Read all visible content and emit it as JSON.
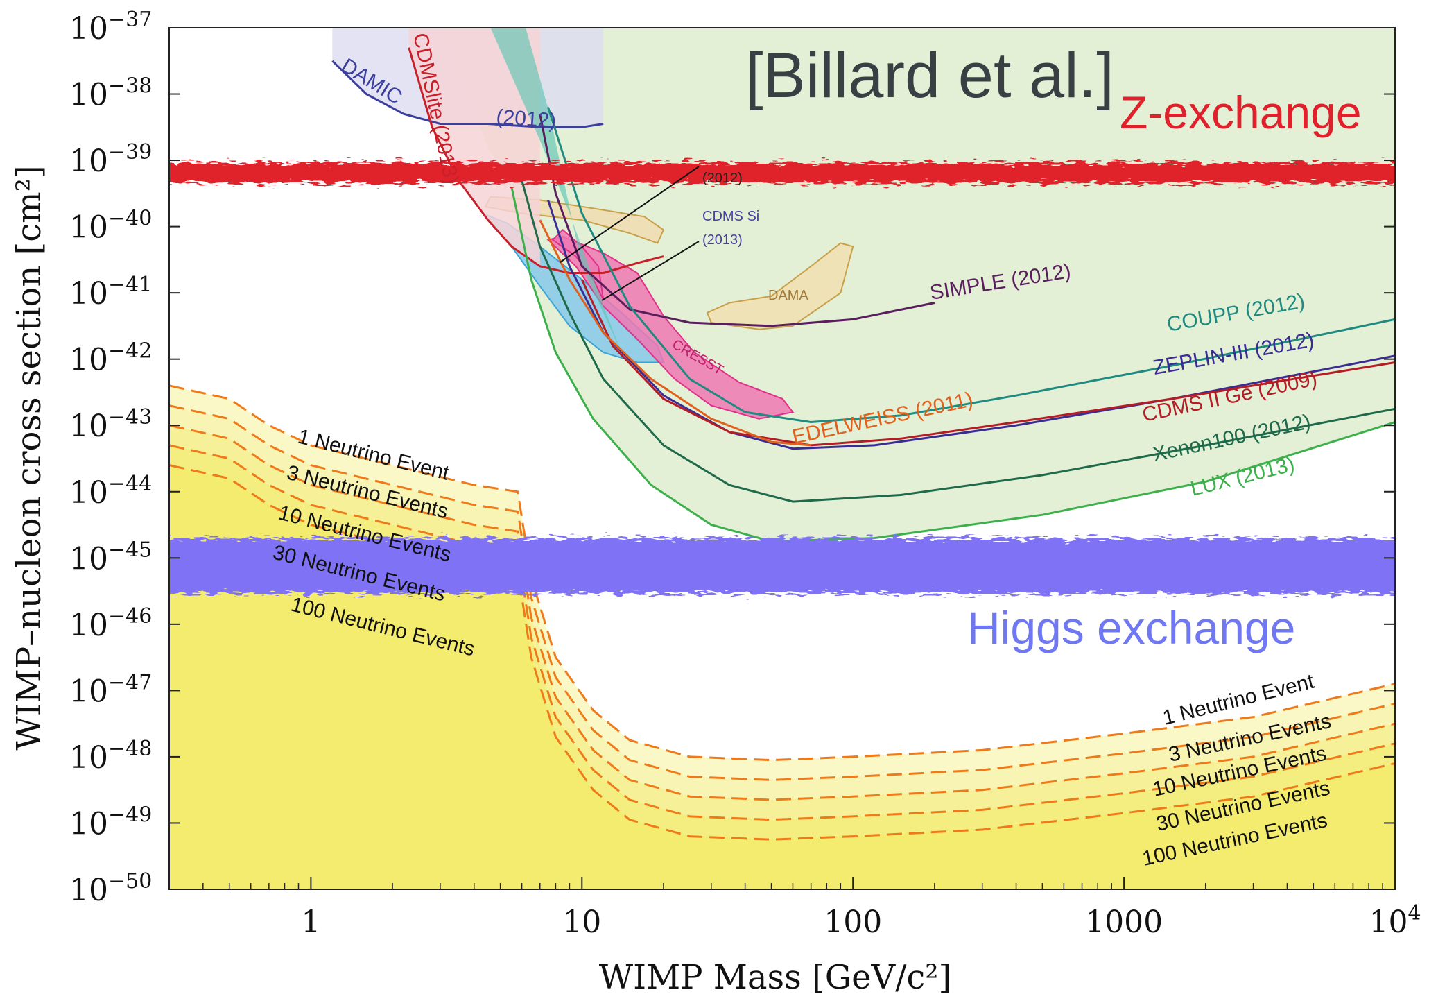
{
  "chart_data": {
    "type": "line",
    "xlabel": "WIMP Mass [GeV/c²]",
    "ylabel": "WIMP–nucleon cross section [cm²]",
    "x_scale": "log",
    "y_scale": "log",
    "xlim": [
      0.3,
      10000
    ],
    "ylim": [
      1e-50,
      1e-37
    ],
    "x_ticks": [
      {
        "value": 1,
        "label": "1"
      },
      {
        "value": 10,
        "label": "10"
      },
      {
        "value": 100,
        "label": "100"
      },
      {
        "value": 1000,
        "label": "1000"
      },
      {
        "value": 10000,
        "label": "10",
        "exp": "4"
      }
    ],
    "y_ticks": [
      {
        "value": -37,
        "label": "10",
        "exp": "−37"
      },
      {
        "value": -38,
        "label": "10",
        "exp": "−38"
      },
      {
        "value": -39,
        "label": "10",
        "exp": "−39"
      },
      {
        "value": -40,
        "label": "10",
        "exp": "−40"
      },
      {
        "value": -41,
        "label": "10",
        "exp": "−41"
      },
      {
        "value": -42,
        "label": "10",
        "exp": "−42"
      },
      {
        "value": -43,
        "label": "10",
        "exp": "−43"
      },
      {
        "value": -44,
        "label": "10",
        "exp": "−44"
      },
      {
        "value": -45,
        "label": "10",
        "exp": "−45"
      },
      {
        "value": -46,
        "label": "10",
        "exp": "−46"
      },
      {
        "value": -47,
        "label": "10",
        "exp": "−47"
      },
      {
        "value": -48,
        "label": "10",
        "exp": "−48"
      },
      {
        "value": -49,
        "label": "10",
        "exp": "−49"
      },
      {
        "value": -50,
        "label": "10",
        "exp": "−50"
      }
    ],
    "attribution": "[Billard et al.]",
    "annotations": {
      "z_exchange": "Z-exchange",
      "higgs_exchange": "Higgs exchange",
      "z_band_log_sigma": -39.2,
      "higgs_band_log_sigma": -45.1,
      "z_color": "#e0202a",
      "higgs_color": "#7f72f5"
    },
    "limit_curves": [
      {
        "name": "DAMIC",
        "label": "DAMIC",
        "color": "#3b3f9e",
        "x": [
          1.2,
          1.6,
          2.2,
          3.0,
          4.5,
          7,
          10,
          12
        ],
        "y": [
          -37.5,
          -38.0,
          -38.3,
          -38.45,
          -38.45,
          -38.5,
          -38.5,
          -38.45
        ]
      },
      {
        "name": "(2012)",
        "label": "(2012)",
        "color": "#3b3f9e",
        "x": [],
        "y": []
      },
      {
        "name": "CDMSlite (2013)",
        "label": "CDMSlite (2013)",
        "color": "#c7202a",
        "x": [
          2.3,
          2.8,
          3.5,
          4.5,
          5.5,
          7,
          9,
          12,
          16,
          20
        ],
        "y": [
          -37.3,
          -38.5,
          -39.3,
          -39.9,
          -40.3,
          -40.6,
          -40.7,
          -40.7,
          -40.55,
          -40.45
        ]
      },
      {
        "name": "SIMPLE (2012)",
        "label": "SIMPLE (2012)",
        "color": "#5a1e5e",
        "x": [
          7,
          8,
          10,
          15,
          25,
          50,
          100,
          200
        ],
        "y": [
          -38.3,
          -39.5,
          -40.6,
          -41.25,
          -41.45,
          -41.5,
          -41.4,
          -41.15
        ]
      },
      {
        "name": "COUPP (2012)",
        "label": "COUPP (2012)",
        "color": "#1f8a80",
        "x": [
          7.5,
          10,
          15,
          25,
          40,
          70,
          150,
          400,
          1500,
          10000
        ],
        "y": [
          -38.2,
          -39.8,
          -41.2,
          -42.3,
          -42.8,
          -42.95,
          -42.85,
          -42.55,
          -42.1,
          -41.4
        ]
      },
      {
        "name": "ZEPLIN-III (2012)",
        "label": "ZEPLIN-III (2012)",
        "color": "#3a2c92",
        "x": [
          7.5,
          9,
          12,
          20,
          35,
          60,
          120,
          400,
          1500,
          10000
        ],
        "y": [
          -39.6,
          -40.6,
          -41.6,
          -42.55,
          -43.1,
          -43.35,
          -43.3,
          -43.0,
          -42.6,
          -41.95
        ]
      },
      {
        "name": "CDMS II Ge (2009)",
        "label": "CDMS II Ge  (2009)",
        "color": "#b51c25",
        "x": [
          10,
          13,
          20,
          35,
          70,
          150,
          400,
          1500,
          10000
        ],
        "y": [
          -40.8,
          -41.8,
          -42.6,
          -43.1,
          -43.3,
          -43.2,
          -42.95,
          -42.6,
          -42.05
        ]
      },
      {
        "name": "EDELWEISS (2011)",
        "label": "EDELWEISS (2011)",
        "color": "#e0601c",
        "x": [
          7,
          9,
          12,
          18,
          30,
          50,
          70
        ],
        "y": [
          -39.9,
          -40.8,
          -41.6,
          -42.3,
          -42.9,
          -43.25,
          -43.3
        ]
      },
      {
        "name": "Xenon100 (2012)",
        "label": "Xenon100 (2012)",
        "color": "#1e6a4a",
        "x": [
          6,
          7,
          9,
          12,
          20,
          35,
          60,
          150,
          500,
          2000,
          10000
        ],
        "y": [
          -39.3,
          -40.3,
          -41.3,
          -42.3,
          -43.3,
          -43.9,
          -44.15,
          -44.05,
          -43.75,
          -43.3,
          -42.75
        ]
      },
      {
        "name": "LUX (2013)",
        "label": "LUX (2013)",
        "color": "#3db04c",
        "x": [
          5.5,
          6.5,
          8,
          11,
          18,
          30,
          50,
          120,
          500,
          2000,
          10000
        ],
        "y": [
          -39.4,
          -40.8,
          -41.9,
          -42.9,
          -43.9,
          -44.5,
          -44.75,
          -44.7,
          -44.35,
          -43.85,
          -42.95
        ]
      }
    ],
    "regions": [
      {
        "name": "CoGeNT (2012)",
        "label": "(2012)",
        "color": "#c9a04a"
      },
      {
        "name": "CDMS Si (2013)",
        "label": "CDMS Si\n(2013)",
        "color": "#3aa4d6"
      },
      {
        "name": "DAMA",
        "label": "DAMA",
        "color": "#c9a04a"
      },
      {
        "name": "CRESST",
        "label": "CRESST",
        "color": "#e0308a"
      }
    ],
    "neutrino_floor": {
      "color": "#ef7a1a",
      "fill": "#f3ee69",
      "low_mass_labels": [
        "1 Neutrino Event",
        "3 Neutrino Events",
        "10 Neutrino Events",
        "30 Neutrino Events",
        "100 Neutrino Events"
      ],
      "high_mass_labels": [
        "1 Neutrino Event",
        "3 Neutrino Events",
        "10 Neutrino Events",
        "30 Neutrino Events",
        "100 Neutrino Events"
      ],
      "x": [
        0.3,
        0.5,
        0.7,
        1,
        2,
        4,
        5.8,
        6.5,
        8,
        11,
        15,
        25,
        50,
        100,
        300,
        1000,
        3000,
        10000
      ],
      "series": [
        {
          "name": "1 Neutrino Event",
          "y": [
            -42.4,
            -42.6,
            -43.0,
            -43.3,
            -43.6,
            -43.9,
            -44.0,
            -45.3,
            -46.5,
            -47.3,
            -47.75,
            -48.0,
            -48.05,
            -48.0,
            -47.9,
            -47.65,
            -47.4,
            -46.9
          ]
        },
        {
          "name": "3 Neutrino Events",
          "y": [
            -42.7,
            -42.9,
            -43.3,
            -43.6,
            -43.9,
            -44.2,
            -44.3,
            -45.6,
            -46.8,
            -47.6,
            -48.05,
            -48.3,
            -48.35,
            -48.3,
            -48.2,
            -47.95,
            -47.7,
            -47.2
          ]
        },
        {
          "name": "10 Neutrino Events",
          "y": [
            -43.0,
            -43.2,
            -43.6,
            -43.9,
            -44.2,
            -44.5,
            -44.6,
            -45.9,
            -47.1,
            -47.9,
            -48.35,
            -48.6,
            -48.65,
            -48.6,
            -48.5,
            -48.25,
            -48.0,
            -47.5
          ]
        },
        {
          "name": "30 Neutrino Events",
          "y": [
            -43.3,
            -43.5,
            -43.9,
            -44.2,
            -44.5,
            -44.8,
            -44.9,
            -46.2,
            -47.4,
            -48.2,
            -48.65,
            -48.9,
            -48.95,
            -48.9,
            -48.8,
            -48.55,
            -48.3,
            -47.8
          ]
        },
        {
          "name": "100 Neutrino Events",
          "y": [
            -43.6,
            -43.8,
            -44.2,
            -44.5,
            -44.8,
            -45.1,
            -45.2,
            -46.5,
            -47.7,
            -48.5,
            -48.95,
            -49.2,
            -49.25,
            -49.2,
            -49.1,
            -48.85,
            -48.6,
            -48.1
          ]
        }
      ]
    }
  }
}
